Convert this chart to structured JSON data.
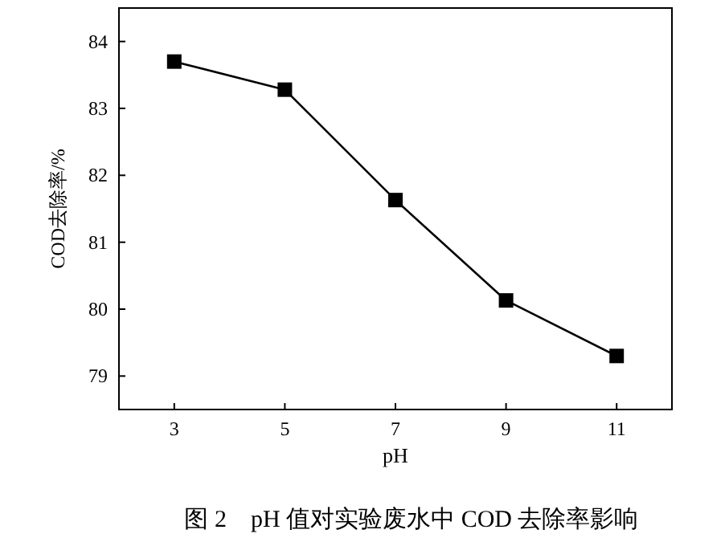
{
  "chart_data": {
    "type": "line",
    "title": "图 2　pH 值对实验废水中 COD 去除率影响",
    "xlabel": "pH",
    "ylabel": "COD去除率/%",
    "x": [
      3,
      5,
      7,
      9,
      11
    ],
    "series": [
      {
        "color": "#000000",
        "values": [
          83.7,
          83.28,
          81.63,
          80.13,
          79.3
        ]
      }
    ],
    "xlim": [
      2,
      12
    ],
    "xticks": [
      3,
      5,
      7,
      9,
      11
    ],
    "ylim": [
      78.5,
      84.5
    ],
    "yticks": [
      79,
      80,
      81,
      82,
      83,
      84
    ],
    "marker": "square",
    "line_style": "solid"
  }
}
